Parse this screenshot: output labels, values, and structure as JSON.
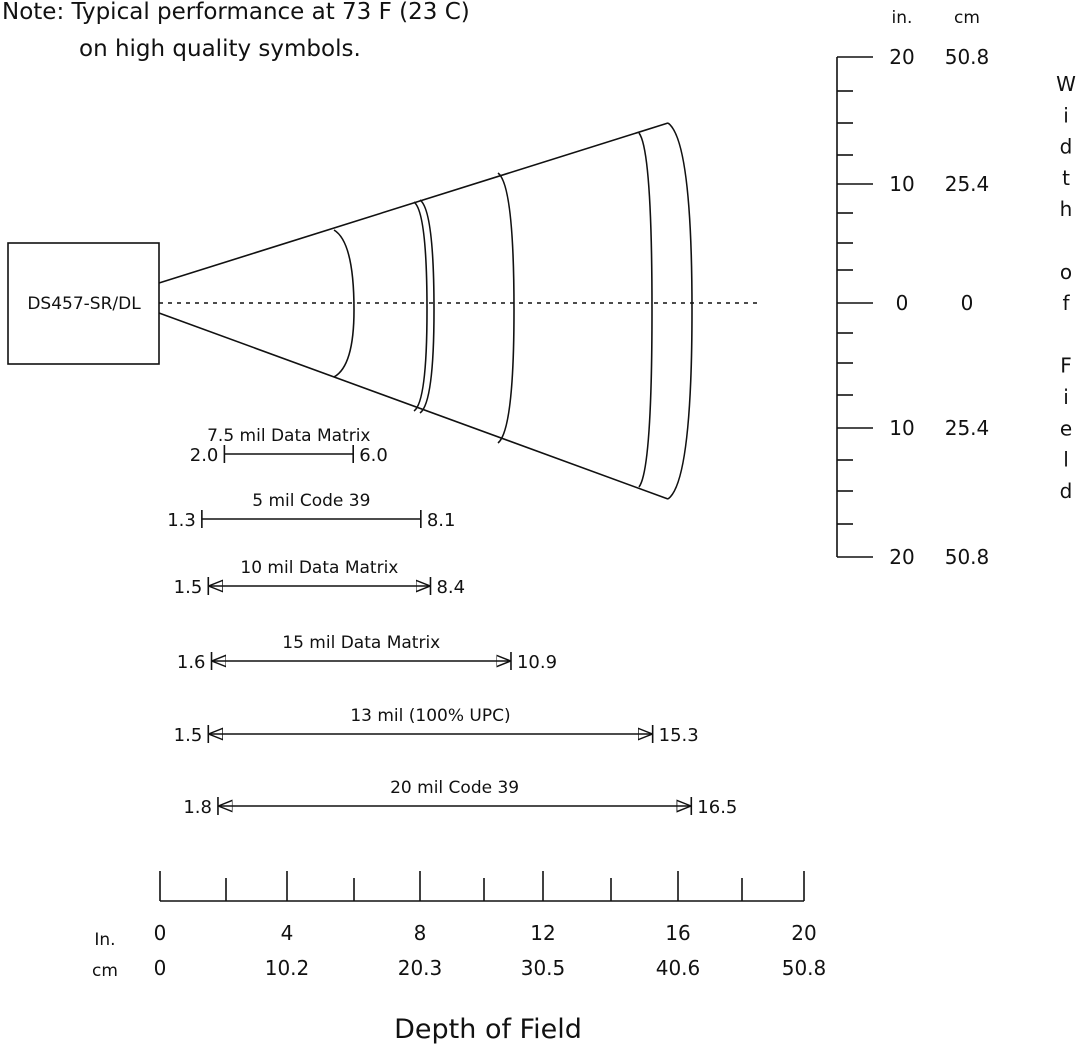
{
  "note": {
    "line1": "Note:  Typical performance at 73 F (23 C)",
    "line2": "on high quality symbols."
  },
  "scanner": {
    "label": "DS457-SR/DL"
  },
  "width_axis": {
    "unit_in": "in.",
    "unit_cm": "cm",
    "ticks": [
      {
        "in": "20",
        "cm": "50.8"
      },
      {
        "in": "10",
        "cm": "25.4"
      },
      {
        "in": "0",
        "cm": "0"
      },
      {
        "in": "10",
        "cm": "25.4"
      },
      {
        "in": "20",
        "cm": "50.8"
      }
    ],
    "title_letters": [
      "W",
      "i",
      "d",
      "t",
      "h",
      "",
      "o",
      "f",
      "",
      "F",
      "i",
      "e",
      "l",
      "d"
    ]
  },
  "depth_axis": {
    "unit_in": "In.",
    "unit_cm": "cm",
    "ticks_in": [
      "0",
      "4",
      "8",
      "12",
      "16",
      "20"
    ],
    "ticks_cm": [
      "0",
      "10.2",
      "20.3",
      "30.5",
      "40.6",
      "50.8"
    ],
    "title": "Depth of Field"
  },
  "ranges": [
    {
      "name": "7.5 mil Data Matrix",
      "near": "2.0",
      "far": "6.0",
      "arrows": false
    },
    {
      "name": "5 mil Code 39",
      "near": "1.3",
      "far": "8.1",
      "arrows": false
    },
    {
      "name": "10 mil Data Matrix",
      "near": "1.5",
      "far": "8.4",
      "arrows": true
    },
    {
      "name": "15 mil Data Matrix",
      "near": "1.6",
      "far": "10.9",
      "arrows": true
    },
    {
      "name": "13 mil (100% UPC)",
      "near": "1.5",
      "far": "15.3",
      "arrows": true
    },
    {
      "name": "20 mil Code 39",
      "near": "1.8",
      "far": "16.5",
      "arrows": true
    }
  ]
}
